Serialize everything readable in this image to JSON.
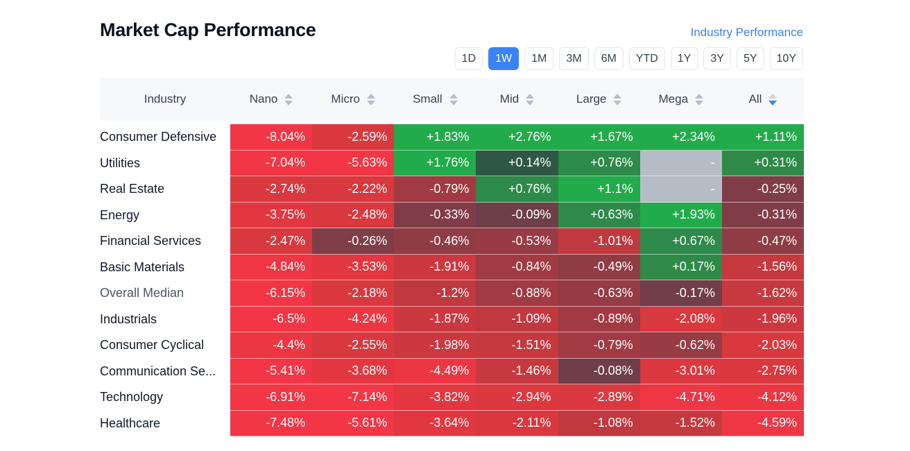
{
  "title": "Market Cap Performance",
  "industry_link": "Industry Performance",
  "ranges": [
    "1D",
    "1W",
    "1M",
    "3M",
    "6M",
    "YTD",
    "1Y",
    "3Y",
    "5Y",
    "10Y"
  ],
  "active_range": "1W",
  "columns": [
    "Industry",
    "Nano",
    "Micro",
    "Small",
    "Mid",
    "Large",
    "Mega",
    "All"
  ],
  "sorted_column": "All",
  "rows": [
    {
      "label": "Consumer Defensive",
      "cells": [
        "-8.04%",
        "-2.59%",
        "+1.83%",
        "+2.76%",
        "+1.67%",
        "+2.34%",
        "+1.11%"
      ],
      "colors": [
        "#f23645",
        "#d9383f",
        "#22ab4a",
        "#22ab4a",
        "#22ab4a",
        "#22ab4a",
        "#22ab4a"
      ]
    },
    {
      "label": "Utilities",
      "cells": [
        "-7.04%",
        "-5.63%",
        "+1.76%",
        "+0.14%",
        "+0.76%",
        "-",
        "+0.31%"
      ],
      "colors": [
        "#f23645",
        "#f23645",
        "#22ab4a",
        "#2f5746",
        "#2d8a4a",
        "#b6bcc6",
        "#2f8a47"
      ]
    },
    {
      "label": "Real Estate",
      "cells": [
        "-2.74%",
        "-2.22%",
        "-0.79%",
        "+0.76%",
        "+1.1%",
        "-",
        "-0.25%"
      ],
      "colors": [
        "#d9383f",
        "#d9383f",
        "#a13a42",
        "#2d8a4a",
        "#22ab4a",
        "#b6bcc6",
        "#803d48"
      ]
    },
    {
      "label": "Energy",
      "cells": [
        "-3.75%",
        "-2.48%",
        "-0.33%",
        "-0.09%",
        "+0.63%",
        "+1.93%",
        "-0.31%"
      ],
      "colors": [
        "#e23740",
        "#d9383f",
        "#803d48",
        "#6f3f49",
        "#2d8a4a",
        "#22ab4a",
        "#803d48"
      ]
    },
    {
      "label": "Financial Services",
      "cells": [
        "-2.47%",
        "-0.26%",
        "-0.46%",
        "-0.53%",
        "-1.01%",
        "+0.67%",
        "-0.47%"
      ],
      "colors": [
        "#d9383f",
        "#7f3e47",
        "#8f3c45",
        "#973b44",
        "#c0393f",
        "#2d8a4a",
        "#8f3c45"
      ]
    },
    {
      "label": "Basic Materials",
      "cells": [
        "-4.84%",
        "-3.53%",
        "-1.91%",
        "-0.84%",
        "-0.49%",
        "+0.17%",
        "-1.56%"
      ],
      "colors": [
        "#ee3644",
        "#e23740",
        "#cc3840",
        "#a13a42",
        "#8f3c45",
        "#2f8a47",
        "#c6393f"
      ]
    },
    {
      "label": "Overall Median",
      "cells": [
        "-6.15%",
        "-2.18%",
        "-1.2%",
        "-0.88%",
        "-0.63%",
        "-0.17%",
        "-1.62%"
      ],
      "colors": [
        "#f23645",
        "#d9383f",
        "#c0393f",
        "#a13a42",
        "#973b44",
        "#723e48",
        "#c6393f"
      ]
    },
    {
      "label": "Industrials",
      "cells": [
        "-6.5%",
        "-4.24%",
        "-1.87%",
        "-1.09%",
        "-0.89%",
        "-2.08%",
        "-1.96%"
      ],
      "colors": [
        "#f23645",
        "#ec3743",
        "#cc3840",
        "#c0393f",
        "#a13a42",
        "#d9383f",
        "#cc3840"
      ]
    },
    {
      "label": "Consumer Cyclical",
      "cells": [
        "-4.4%",
        "-2.55%",
        "-1.98%",
        "-1.51%",
        "-0.79%",
        "-0.62%",
        "-2.03%"
      ],
      "colors": [
        "#ec3743",
        "#d9383f",
        "#cc3840",
        "#c6393f",
        "#a13a42",
        "#973b44",
        "#d9383f"
      ]
    },
    {
      "label": "Communication Se...",
      "cells": [
        "-5.41%",
        "-3.68%",
        "-4.49%",
        "-1.46%",
        "-0.08%",
        "-3.01%",
        "-2.75%"
      ],
      "colors": [
        "#f23645",
        "#e23740",
        "#ec3743",
        "#c6393f",
        "#6f3f49",
        "#dc3840",
        "#d9383f"
      ]
    },
    {
      "label": "Technology",
      "cells": [
        "-6.91%",
        "-7.14%",
        "-3.82%",
        "-2.94%",
        "-2.89%",
        "-4.71%",
        "-4.12%"
      ],
      "colors": [
        "#f23645",
        "#f23645",
        "#e23740",
        "#dc3840",
        "#dc3840",
        "#ee3644",
        "#ec3743"
      ]
    },
    {
      "label": "Healthcare",
      "cells": [
        "-7.48%",
        "-5.61%",
        "-3.64%",
        "-2.11%",
        "-1.08%",
        "-1.52%",
        "-4.59%"
      ],
      "colors": [
        "#f23645",
        "#f23645",
        "#e23740",
        "#d9383f",
        "#c0393f",
        "#c6393f",
        "#ee3644"
      ]
    }
  ]
}
